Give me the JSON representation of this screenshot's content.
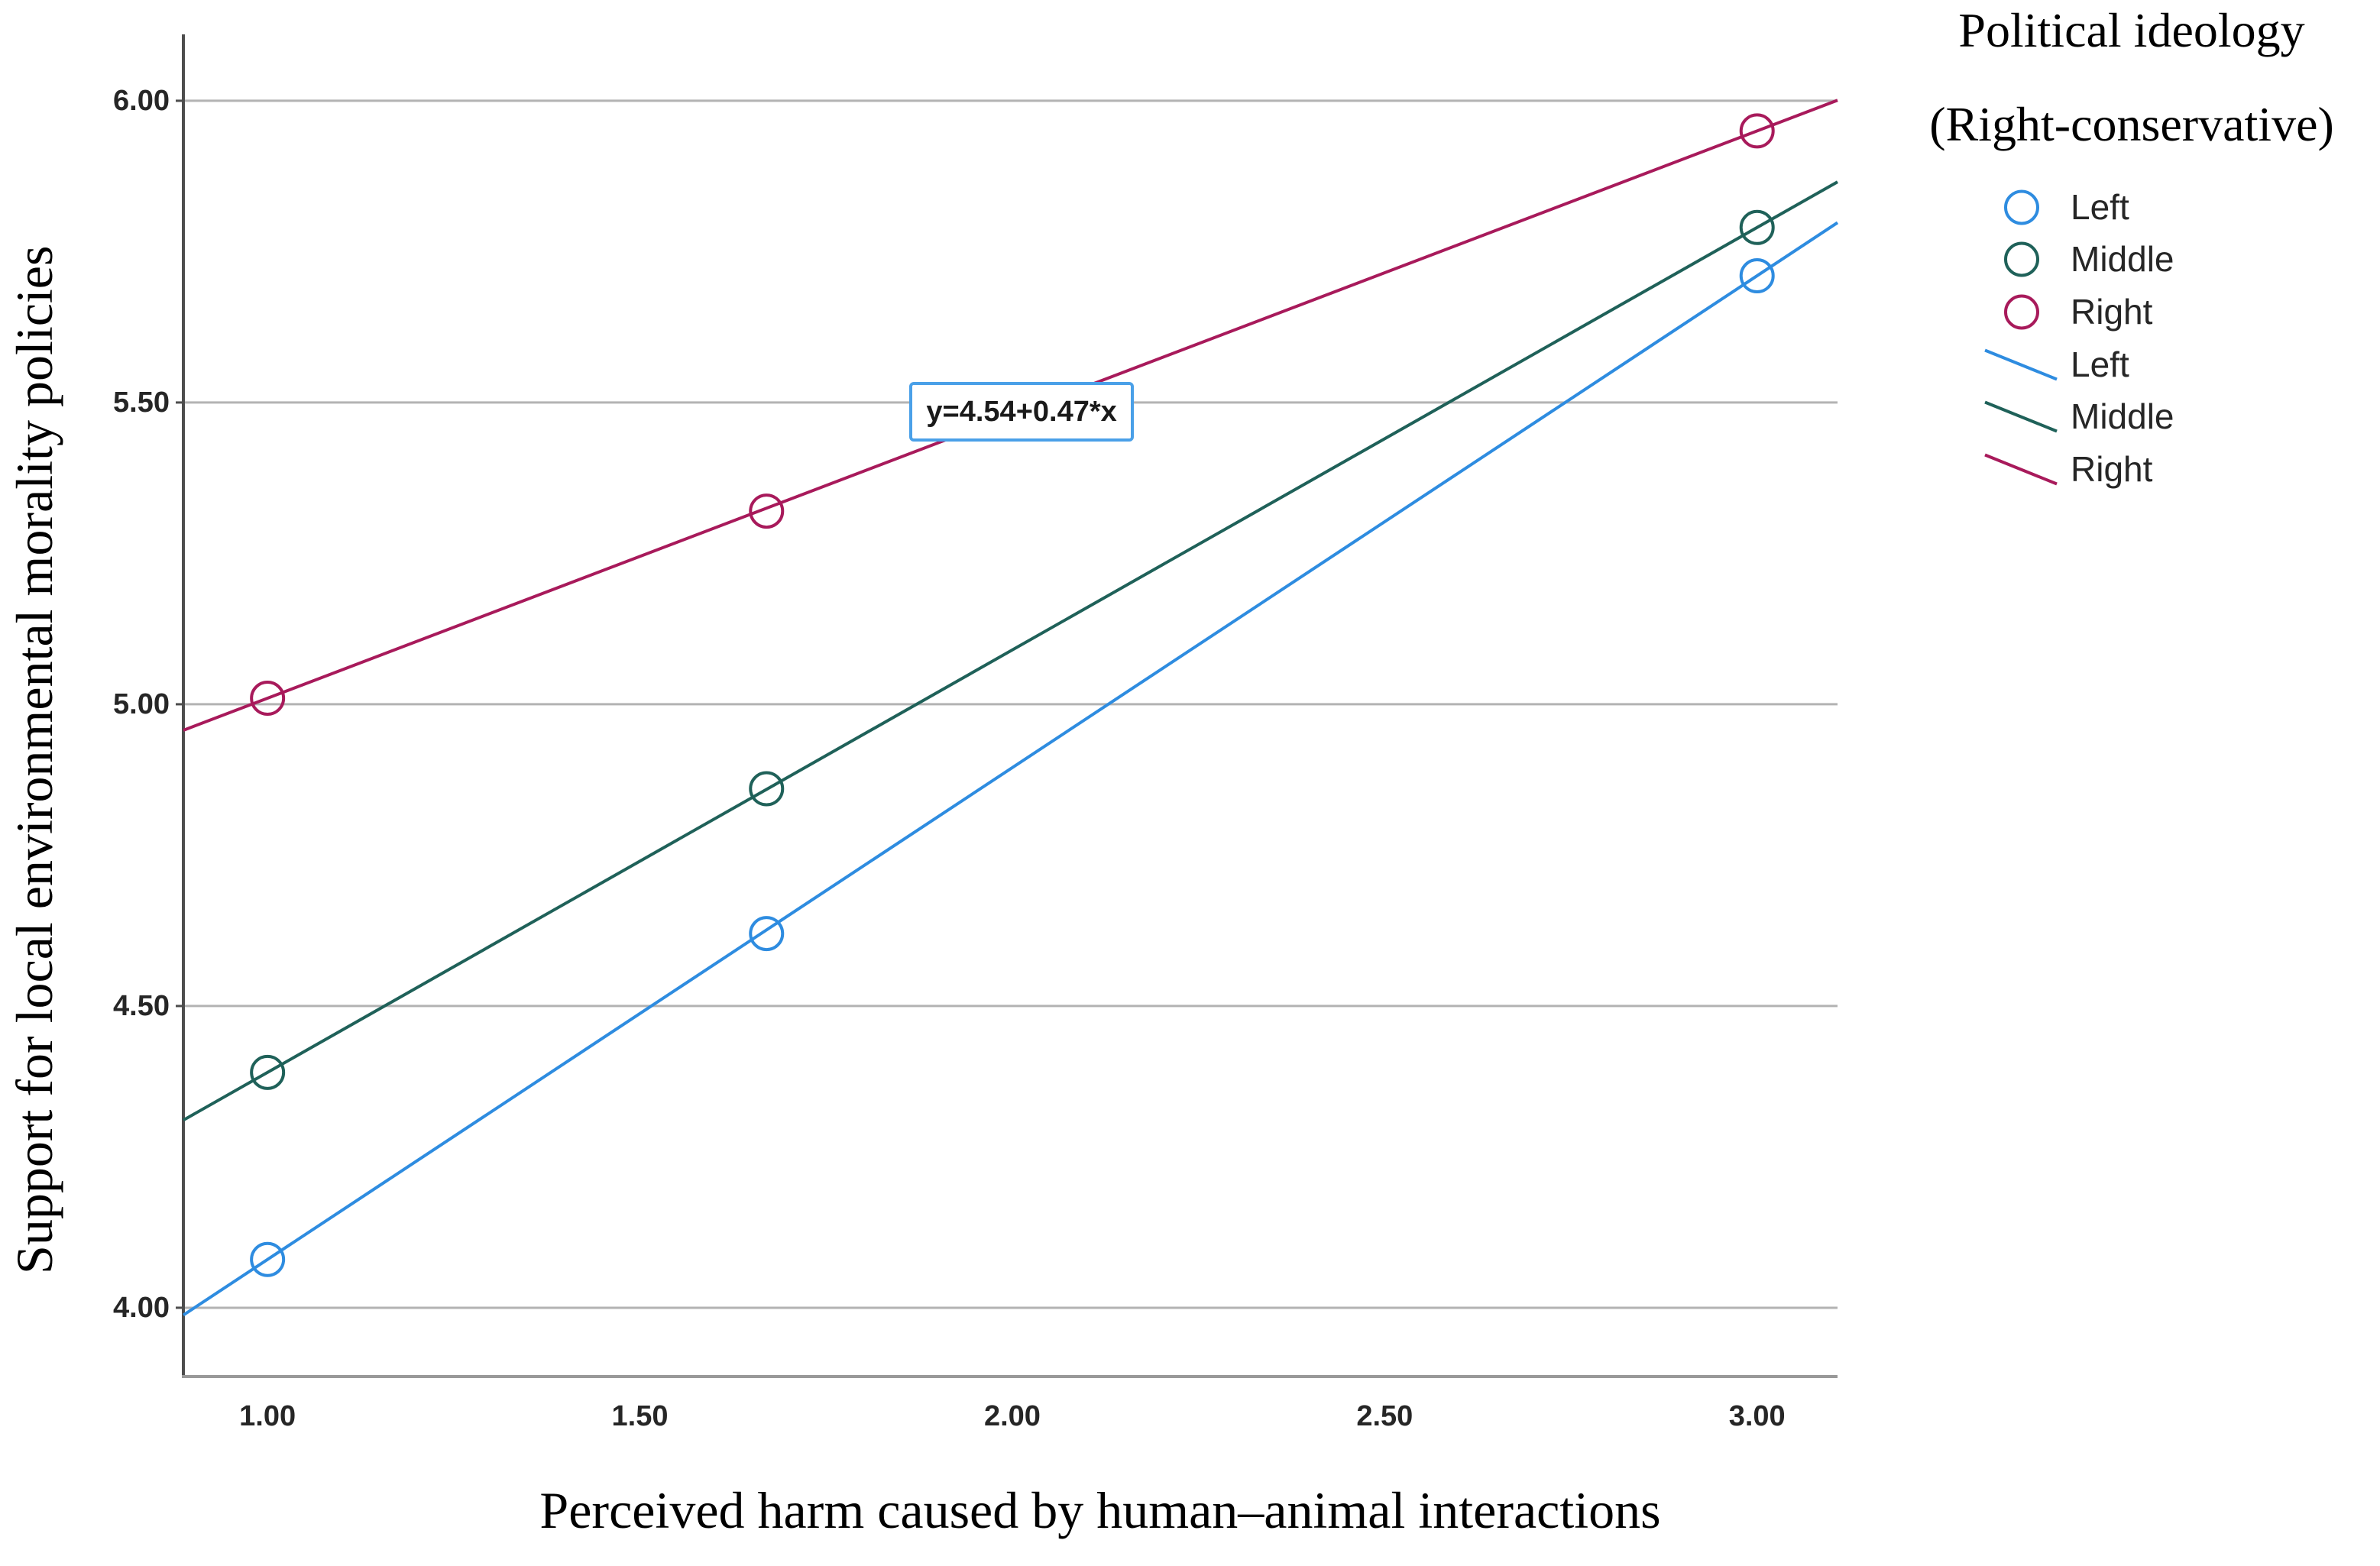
{
  "figure": {
    "background": "#ffffff"
  },
  "chart_data": {
    "type": "line",
    "title": "",
    "xlabel": "Perceived harm caused by human–animal interactions",
    "ylabel": "Support for local environmental morality policies",
    "xlim": [
      0.887,
      3.108
    ],
    "ylim": [
      3.886,
      6.11
    ],
    "grid": "horizontal",
    "legend_position": "top-right-outside",
    "xticks": [
      {
        "value": 1.0,
        "label": "1.00"
      },
      {
        "value": 1.5,
        "label": "1.50"
      },
      {
        "value": 2.0,
        "label": "2.00"
      },
      {
        "value": 2.5,
        "label": "2.50"
      },
      {
        "value": 3.0,
        "label": "3.00"
      }
    ],
    "yticks": [
      {
        "value": 4.0,
        "label": "4.00"
      },
      {
        "value": 4.5,
        "label": "4.50"
      },
      {
        "value": 5.0,
        "label": "5.00"
      },
      {
        "value": 5.5,
        "label": "5.50"
      },
      {
        "value": 6.0,
        "label": "6.00"
      }
    ],
    "series": [
      {
        "name": "Left",
        "color": "#2e8ce0",
        "marker": "circle",
        "fit": {
          "intercept": 3.265,
          "slope": 0.815
        },
        "points": [
          {
            "x": 1.0,
            "y": 4.08
          },
          {
            "x": 1.67,
            "y": 4.62
          },
          {
            "x": 3.0,
            "y": 5.71
          }
        ]
      },
      {
        "name": "Middle",
        "color": "#1f6159",
        "marker": "circle",
        "fit": {
          "intercept": 3.69,
          "slope": 0.7
        },
        "points": [
          {
            "x": 1.0,
            "y": 4.39
          },
          {
            "x": 1.67,
            "y": 4.86
          },
          {
            "x": 3.0,
            "y": 5.79
          }
        ]
      },
      {
        "name": "Right",
        "color": "#a81a5b",
        "marker": "circle",
        "fit": {
          "intercept": 4.54,
          "slope": 0.47
        },
        "points": [
          {
            "x": 1.0,
            "y": 5.01
          },
          {
            "x": 1.67,
            "y": 5.32
          },
          {
            "x": 3.0,
            "y": 5.95
          }
        ]
      }
    ],
    "annotation": {
      "text": "y=4.54+0.47*x",
      "x": 1.862,
      "y": 5.534,
      "border_color": "#4aa0e8"
    }
  },
  "legend": {
    "title_line1": "Political ideology",
    "title_line2": "(Right-conservative)",
    "items": [
      {
        "label": "Left",
        "kind": "marker",
        "color": "#2e8ce0"
      },
      {
        "label": "Middle",
        "kind": "marker",
        "color": "#1f6159"
      },
      {
        "label": "Right",
        "kind": "marker",
        "color": "#a81a5b"
      },
      {
        "label": "Left",
        "kind": "line",
        "color": "#2e8ce0"
      },
      {
        "label": "Middle",
        "kind": "line",
        "color": "#1f6159"
      },
      {
        "label": "Right",
        "kind": "line",
        "color": "#a81a5b"
      }
    ]
  },
  "colors": {
    "gridline": "#b3b3b3",
    "axis_left": "#4d4d4d",
    "axis_bottom": "#999999",
    "tick_text": "#262626",
    "title_text": "#000000"
  }
}
